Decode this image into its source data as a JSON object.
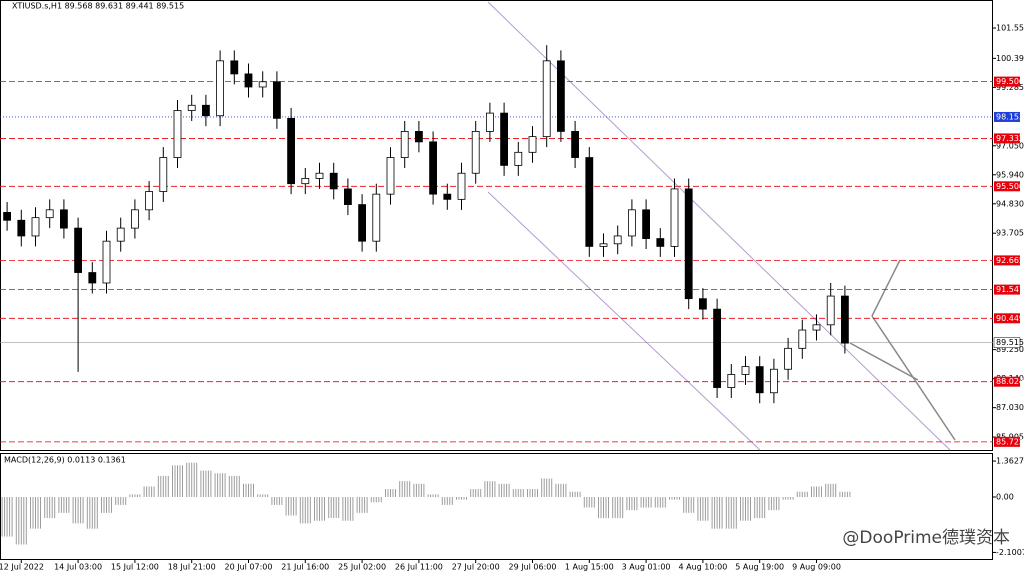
{
  "chart_data": [
    {
      "type": "candlestick",
      "title": "XTIUSD.s,H1  89.568 89.631 89.441 89.515",
      "color": "#000000",
      "up_fill": "#ffffff",
      "categories": [
        null,
        "12 Jul 2022",
        null,
        null,
        null,
        "14 Jul 03:00",
        null,
        null,
        null,
        "15 Jul 12:00",
        null,
        null,
        null,
        "18 Jul 21:00",
        null,
        null,
        null,
        "20 Jul 07:00",
        null,
        null,
        null,
        "21 Jul 16:00",
        null,
        null,
        null,
        "25 Jul 02:00",
        null,
        null,
        null,
        "26 Jul 11:00",
        null,
        null,
        null,
        "27 Jul 20:00",
        null,
        null,
        null,
        "29 Jul 06:00",
        null,
        null,
        null,
        "1 Aug 15:00",
        null,
        null,
        null,
        "3 Aug 01:00",
        null,
        null,
        null,
        "4 Aug 10:00",
        null,
        null,
        null,
        "5 Aug 19:00",
        null,
        null,
        null,
        "9 Aug 09:00",
        null,
        null
      ],
      "open": [
        94.5,
        94.2,
        93.6,
        94.3,
        94.6,
        93.9,
        92.2,
        91.8,
        93.4,
        93.9,
        94.6,
        95.3,
        96.6,
        98.4,
        98.6,
        98.2,
        100.3,
        99.8,
        99.3,
        99.5,
        98.1,
        95.6,
        95.8,
        96.0,
        95.4,
        94.8,
        93.4,
        95.2,
        96.6,
        97.6,
        97.2,
        95.2,
        95.0,
        96.0,
        97.6,
        98.3,
        96.3,
        96.8,
        97.4,
        100.3,
        97.6,
        96.6,
        93.2,
        93.3,
        93.6,
        94.6,
        93.5,
        93.2,
        95.4,
        91.2,
        90.8,
        87.8,
        88.3,
        88.6,
        87.6,
        88.5,
        89.3,
        90.0,
        90.2,
        91.3
      ],
      "high": [
        94.9,
        94.6,
        94.7,
        95.0,
        95.0,
        94.3,
        92.6,
        93.8,
        94.3,
        95.0,
        95.7,
        97.0,
        98.8,
        99.0,
        99.0,
        100.7,
        100.7,
        100.2,
        99.9,
        99.9,
        98.5,
        96.2,
        96.4,
        96.4,
        95.8,
        95.2,
        95.6,
        97.0,
        98.0,
        98.0,
        97.6,
        95.6,
        96.4,
        98.0,
        98.7,
        98.7,
        97.2,
        97.8,
        100.9,
        100.7,
        98.0,
        97.0,
        93.7,
        94.0,
        95.0,
        95.0,
        93.9,
        95.8,
        95.8,
        91.6,
        91.2,
        88.7,
        89.0,
        89.0,
        88.9,
        89.7,
        90.4,
        90.6,
        91.8,
        91.7
      ],
      "low": [
        93.8,
        93.2,
        93.2,
        93.9,
        93.5,
        88.4,
        91.4,
        91.4,
        93.0,
        93.5,
        94.2,
        94.9,
        96.2,
        98.0,
        97.8,
        97.8,
        99.4,
        98.9,
        98.9,
        97.7,
        95.2,
        95.2,
        95.4,
        95.0,
        94.4,
        93.0,
        93.0,
        94.8,
        96.2,
        96.8,
        94.8,
        94.6,
        94.6,
        95.6,
        97.2,
        95.9,
        95.9,
        96.4,
        97.0,
        97.2,
        96.2,
        92.8,
        92.8,
        92.9,
        93.2,
        93.1,
        92.8,
        92.8,
        90.8,
        90.4,
        87.4,
        87.4,
        87.9,
        87.2,
        87.2,
        88.1,
        88.9,
        89.6,
        89.8,
        89.1
      ],
      "close": [
        94.2,
        93.6,
        94.3,
        94.6,
        93.9,
        92.2,
        91.8,
        93.4,
        93.9,
        94.6,
        95.3,
        96.6,
        98.4,
        98.6,
        98.2,
        100.3,
        99.8,
        99.3,
        99.5,
        98.1,
        95.6,
        95.8,
        96.0,
        95.4,
        94.8,
        93.4,
        95.2,
        96.6,
        97.6,
        97.2,
        95.2,
        95.0,
        96.0,
        97.6,
        98.3,
        96.3,
        96.8,
        97.4,
        100.3,
        97.6,
        96.6,
        93.2,
        93.3,
        93.6,
        94.6,
        93.5,
        93.2,
        95.4,
        91.2,
        90.8,
        87.8,
        88.3,
        88.6,
        87.6,
        88.5,
        89.3,
        90.0,
        90.2,
        91.3,
        89.5
      ],
      "ylim": [
        85.41,
        102.59
      ],
      "yticks": [
        101.555,
        100.395,
        99.285,
        {
          "value": 97.05,
          "label": "97.050"
        },
        {
          "value": 95.94,
          "label": "95.940"
        },
        {
          "value": 94.83,
          "label": "94.830"
        },
        93.705,
        {
          "value": 89.25,
          "label": "89.250"
        },
        {
          "value": 88.14,
          "label": "88.140"
        },
        {
          "value": 87.03,
          "label": "87.030"
        },
        85.905
      ],
      "levels": [
        99.506,
        97.332,
        {
          "value": 95.5,
          "label": "95.500"
        },
        92.665,
        91.547,
        90.449,
        88.024,
        85.722
      ],
      "level_color": "#e8000b",
      "ma_level": 98.153,
      "ma_color": "#1f3fd6",
      "last_price": 89.515,
      "last_color": "#9a9a9a"
    },
    {
      "type": "bar",
      "title": "MACD(12,26,9) 0.0113 0.1361",
      "color": "#9c9c9c",
      "values": [
        -1.5,
        -1.8,
        -1.2,
        -0.8,
        -0.6,
        -1.0,
        -1.2,
        -0.6,
        -0.3,
        0.1,
        0.4,
        0.8,
        1.2,
        1.3,
        1.0,
        0.9,
        0.8,
        0.5,
        0.1,
        -0.3,
        -0.7,
        -1.0,
        -0.9,
        -0.8,
        -0.9,
        -0.6,
        -0.2,
        0.3,
        0.6,
        0.5,
        0.1,
        -0.3,
        -0.1,
        0.3,
        0.6,
        0.5,
        0.3,
        0.3,
        0.7,
        0.5,
        0.2,
        -0.4,
        -0.8,
        -0.8,
        -0.5,
        -0.4,
        -0.4,
        -0.1,
        -0.6,
        -0.9,
        -1.2,
        -1.2,
        -0.9,
        -0.8,
        -0.5,
        -0.1,
        0.2,
        0.4,
        0.5,
        0.2
      ],
      "ylim": [
        -2.35,
        1.63
      ],
      "yticks": [
        1.3627,
        {
          "value": 0,
          "label": "0.00"
        },
        -2.1007
      ]
    }
  ],
  "watermark": "@DooPrime德璞资本"
}
